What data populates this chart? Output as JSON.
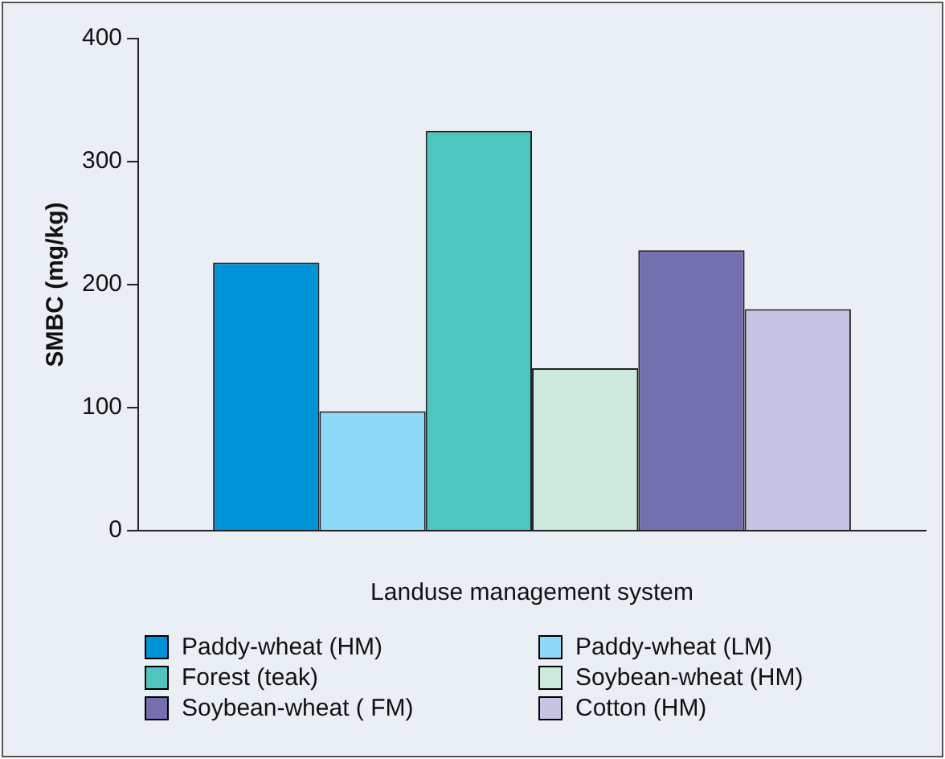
{
  "chart_data": {
    "type": "bar",
    "xlabel": "Landuse management system",
    "ylabel": "SMBC (mg/kg)",
    "categories": [
      null
    ],
    "series": [
      {
        "name": "Paddy-wheat (HM)",
        "color": "#0093d8",
        "values": [
          218
        ]
      },
      {
        "name": "Paddy-wheat (LM)",
        "color": "#8fd8f8",
        "values": [
          97
        ]
      },
      {
        "name": "Forest (teak)",
        "color": "#4fc5c0",
        "values": [
          325
        ]
      },
      {
        "name": "Soybean-wheat (HM)",
        "color": "#cde9dc",
        "values": [
          132
        ]
      },
      {
        "name": "Soybean-wheat ( FM)",
        "color": "#7470b0",
        "values": [
          228
        ]
      },
      {
        "name": "Cotton (HM)",
        "color": "#c7c3e2",
        "values": [
          180
        ]
      }
    ],
    "ylim": [
      0,
      400
    ],
    "yticks": [
      0,
      100,
      200,
      300,
      400
    ],
    "grid": false,
    "legend": "bottom"
  }
}
